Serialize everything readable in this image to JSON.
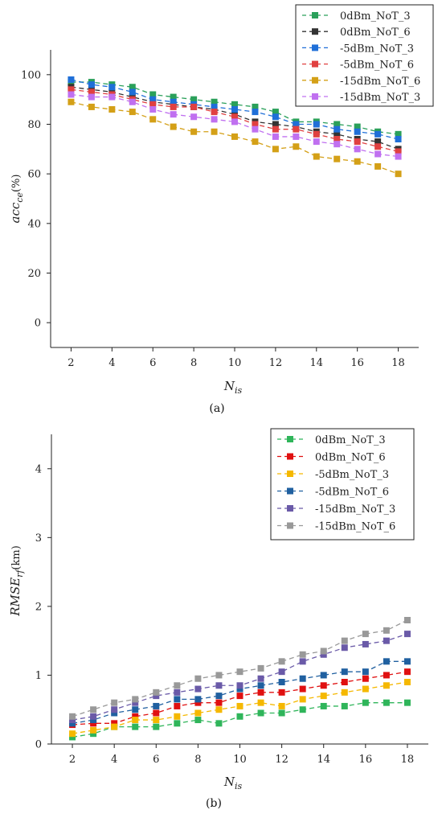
{
  "chart_data": [
    {
      "type": "line",
      "caption": "(a)",
      "xlabel": "N",
      "xlabel_sub": "is",
      "ylabel": "acc",
      "ylabel_sub": "ce",
      "ylabel_unit": "(%)",
      "xlim": [
        1,
        19
      ],
      "ylim": [
        -10,
        110
      ],
      "xticks": [
        2,
        4,
        6,
        8,
        10,
        12,
        14,
        16,
        18
      ],
      "yticks": [
        0,
        20,
        40,
        60,
        80,
        100
      ],
      "grid": false,
      "legend": "top-right",
      "x": [
        2,
        3,
        4,
        5,
        6,
        7,
        8,
        9,
        10,
        11,
        12,
        13,
        14,
        15,
        16,
        17,
        18
      ],
      "series": [
        {
          "name": "0dBm_NoT_3",
          "color": "#2aa05a",
          "values": [
            97,
            97,
            96,
            95,
            92,
            91,
            90,
            89,
            88,
            87,
            85,
            81,
            81,
            80,
            79,
            77,
            76
          ]
        },
        {
          "name": "0dBm_NoT_6",
          "color": "#333333",
          "values": [
            95,
            94,
            93,
            91,
            89,
            88,
            87,
            86,
            84,
            81,
            80,
            79,
            77,
            76,
            74,
            73,
            70
          ]
        },
        {
          "name": "-5dBm_NoT_3",
          "color": "#1f6fd8",
          "values": [
            98,
            96,
            95,
            93,
            90,
            89,
            88,
            87,
            86,
            85,
            83,
            80,
            80,
            78,
            77,
            76,
            74
          ]
        },
        {
          "name": "-5dBm_NoT_6",
          "color": "#e04040",
          "values": [
            94,
            93,
            92,
            90,
            88,
            87,
            87,
            85,
            83,
            80,
            78,
            78,
            76,
            74,
            73,
            71,
            69
          ]
        },
        {
          "name": "-15dBm_NoT_6",
          "color": "#d4a017",
          "values": [
            89,
            87,
            86,
            85,
            82,
            79,
            77,
            77,
            75,
            73,
            70,
            71,
            67,
            66,
            65,
            63,
            60
          ]
        },
        {
          "name": "-15dBm_NoT_3",
          "color": "#c070f0",
          "values": [
            92,
            91,
            91,
            89,
            86,
            84,
            83,
            82,
            81,
            78,
            75,
            75,
            73,
            72,
            70,
            68,
            67
          ]
        }
      ]
    },
    {
      "type": "line",
      "caption": "(b)",
      "xlabel": "N",
      "xlabel_sub": "is",
      "ylabel": "RMSE",
      "ylabel_sub": "rf",
      "ylabel_unit": "(km)",
      "xlim": [
        1,
        19
      ],
      "ylim": [
        0,
        4.5
      ],
      "xticks": [
        2,
        4,
        6,
        8,
        10,
        12,
        14,
        16,
        18
      ],
      "yticks": [
        0,
        1,
        2,
        3,
        4
      ],
      "grid": false,
      "legend": "top-right",
      "x": [
        2,
        3,
        4,
        5,
        6,
        7,
        8,
        9,
        10,
        11,
        12,
        13,
        14,
        15,
        16,
        17,
        18
      ],
      "series": [
        {
          "name": "0dBm_NoT_3",
          "color": "#2fb55a",
          "values": [
            0.1,
            0.15,
            0.25,
            0.25,
            0.25,
            0.3,
            0.35,
            0.3,
            0.4,
            0.45,
            0.45,
            0.5,
            0.55,
            0.55,
            0.6,
            0.6,
            0.6
          ]
        },
        {
          "name": "0dBm_NoT_6",
          "color": "#e01010",
          "values": [
            0.28,
            0.3,
            0.3,
            0.4,
            0.45,
            0.55,
            0.6,
            0.6,
            0.7,
            0.75,
            0.75,
            0.8,
            0.85,
            0.9,
            0.95,
            1.0,
            1.05
          ]
        },
        {
          "name": "-5dBm_NoT_3",
          "color": "#f5b800",
          "values": [
            0.15,
            0.2,
            0.25,
            0.35,
            0.35,
            0.4,
            0.45,
            0.5,
            0.55,
            0.6,
            0.55,
            0.65,
            0.7,
            0.75,
            0.8,
            0.85,
            0.9
          ]
        },
        {
          "name": "-5dBm_NoT_6",
          "color": "#2060a0",
          "values": [
            0.3,
            0.35,
            0.45,
            0.5,
            0.55,
            0.65,
            0.65,
            0.7,
            0.8,
            0.85,
            0.9,
            0.95,
            1.0,
            1.05,
            1.05,
            1.2,
            1.2
          ]
        },
        {
          "name": "-15dBm_NoT_3",
          "color": "#6a5aa8",
          "values": [
            0.35,
            0.4,
            0.5,
            0.6,
            0.7,
            0.75,
            0.8,
            0.85,
            0.85,
            0.95,
            1.05,
            1.2,
            1.3,
            1.4,
            1.45,
            1.5,
            1.6
          ]
        },
        {
          "name": "-15dBm_NoT_6",
          "color": "#999999",
          "values": [
            0.4,
            0.5,
            0.6,
            0.65,
            0.75,
            0.85,
            0.95,
            1.0,
            1.05,
            1.1,
            1.2,
            1.3,
            1.35,
            1.5,
            1.6,
            1.65,
            1.8
          ]
        }
      ]
    }
  ]
}
